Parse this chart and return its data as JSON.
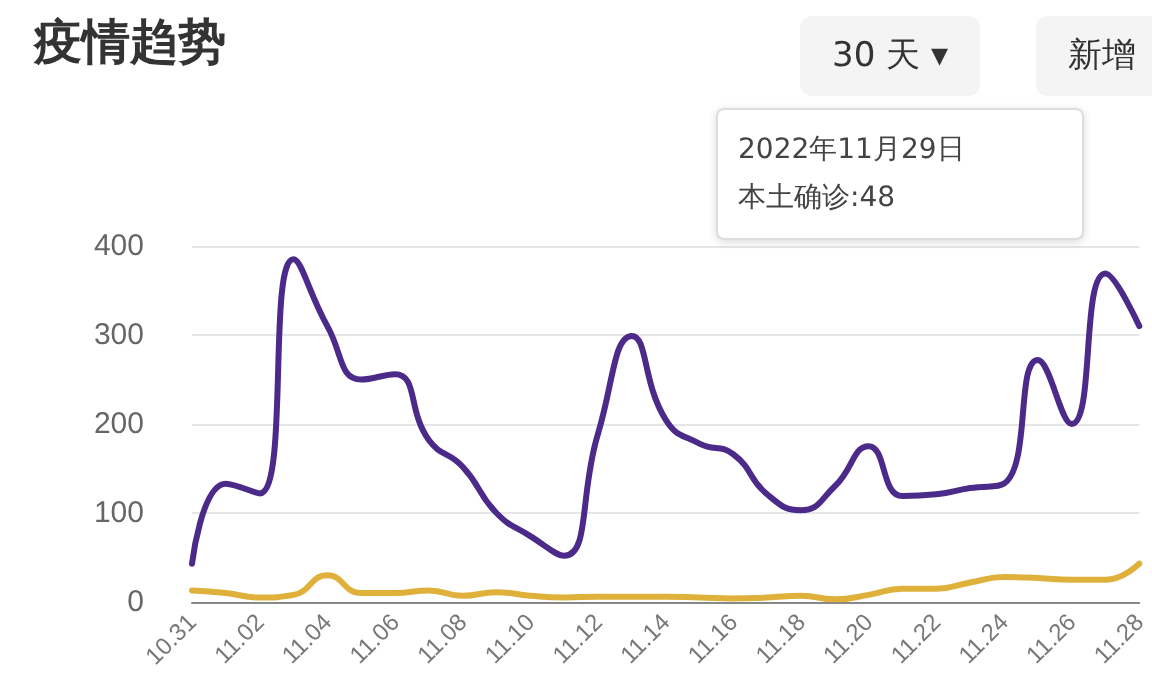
{
  "chart_data": {
    "type": "line",
    "title": "疫情趋势",
    "annotations": [
      "30 天 ▾",
      "新增",
      "2022年11月29日",
      "本土确诊:48"
    ],
    "categories": [
      "10.31",
      null,
      "11.02",
      null,
      "11.04",
      null,
      "11.06",
      null,
      "11.08",
      null,
      "11.10",
      null,
      "11.12",
      null,
      "11.14",
      null,
      "11.16",
      null,
      "11.18",
      null,
      "11.20",
      null,
      "11.22",
      null,
      "11.24",
      null,
      "11.26",
      null,
      "11.28"
    ],
    "series": [
      {
        "color": "#4b2a8a",
        "values": [
          43,
          133,
          122,
          385,
          310,
          250,
          256,
          182,
          152,
          100,
          74,
          52,
          189,
          299,
          205,
          178,
          166,
          121,
          103,
          130,
          175,
          119,
          121,
          128,
          133,
          272,
          200,
          369,
          310
        ]
      },
      {
        "color": "#e0b13a",
        "values": [
          13,
          10,
          5,
          8,
          30,
          10,
          10,
          13,
          7,
          11,
          7,
          5,
          6,
          6,
          6,
          5,
          4,
          5,
          7,
          3,
          8,
          15,
          15,
          22,
          28,
          27,
          25,
          25,
          43
        ]
      }
    ],
    "ylim": [
      0,
      400
    ],
    "yticks": [
      0,
      100,
      200,
      300,
      400
    ],
    "grid": "y",
    "marker": "none",
    "line_style": "solid"
  }
}
